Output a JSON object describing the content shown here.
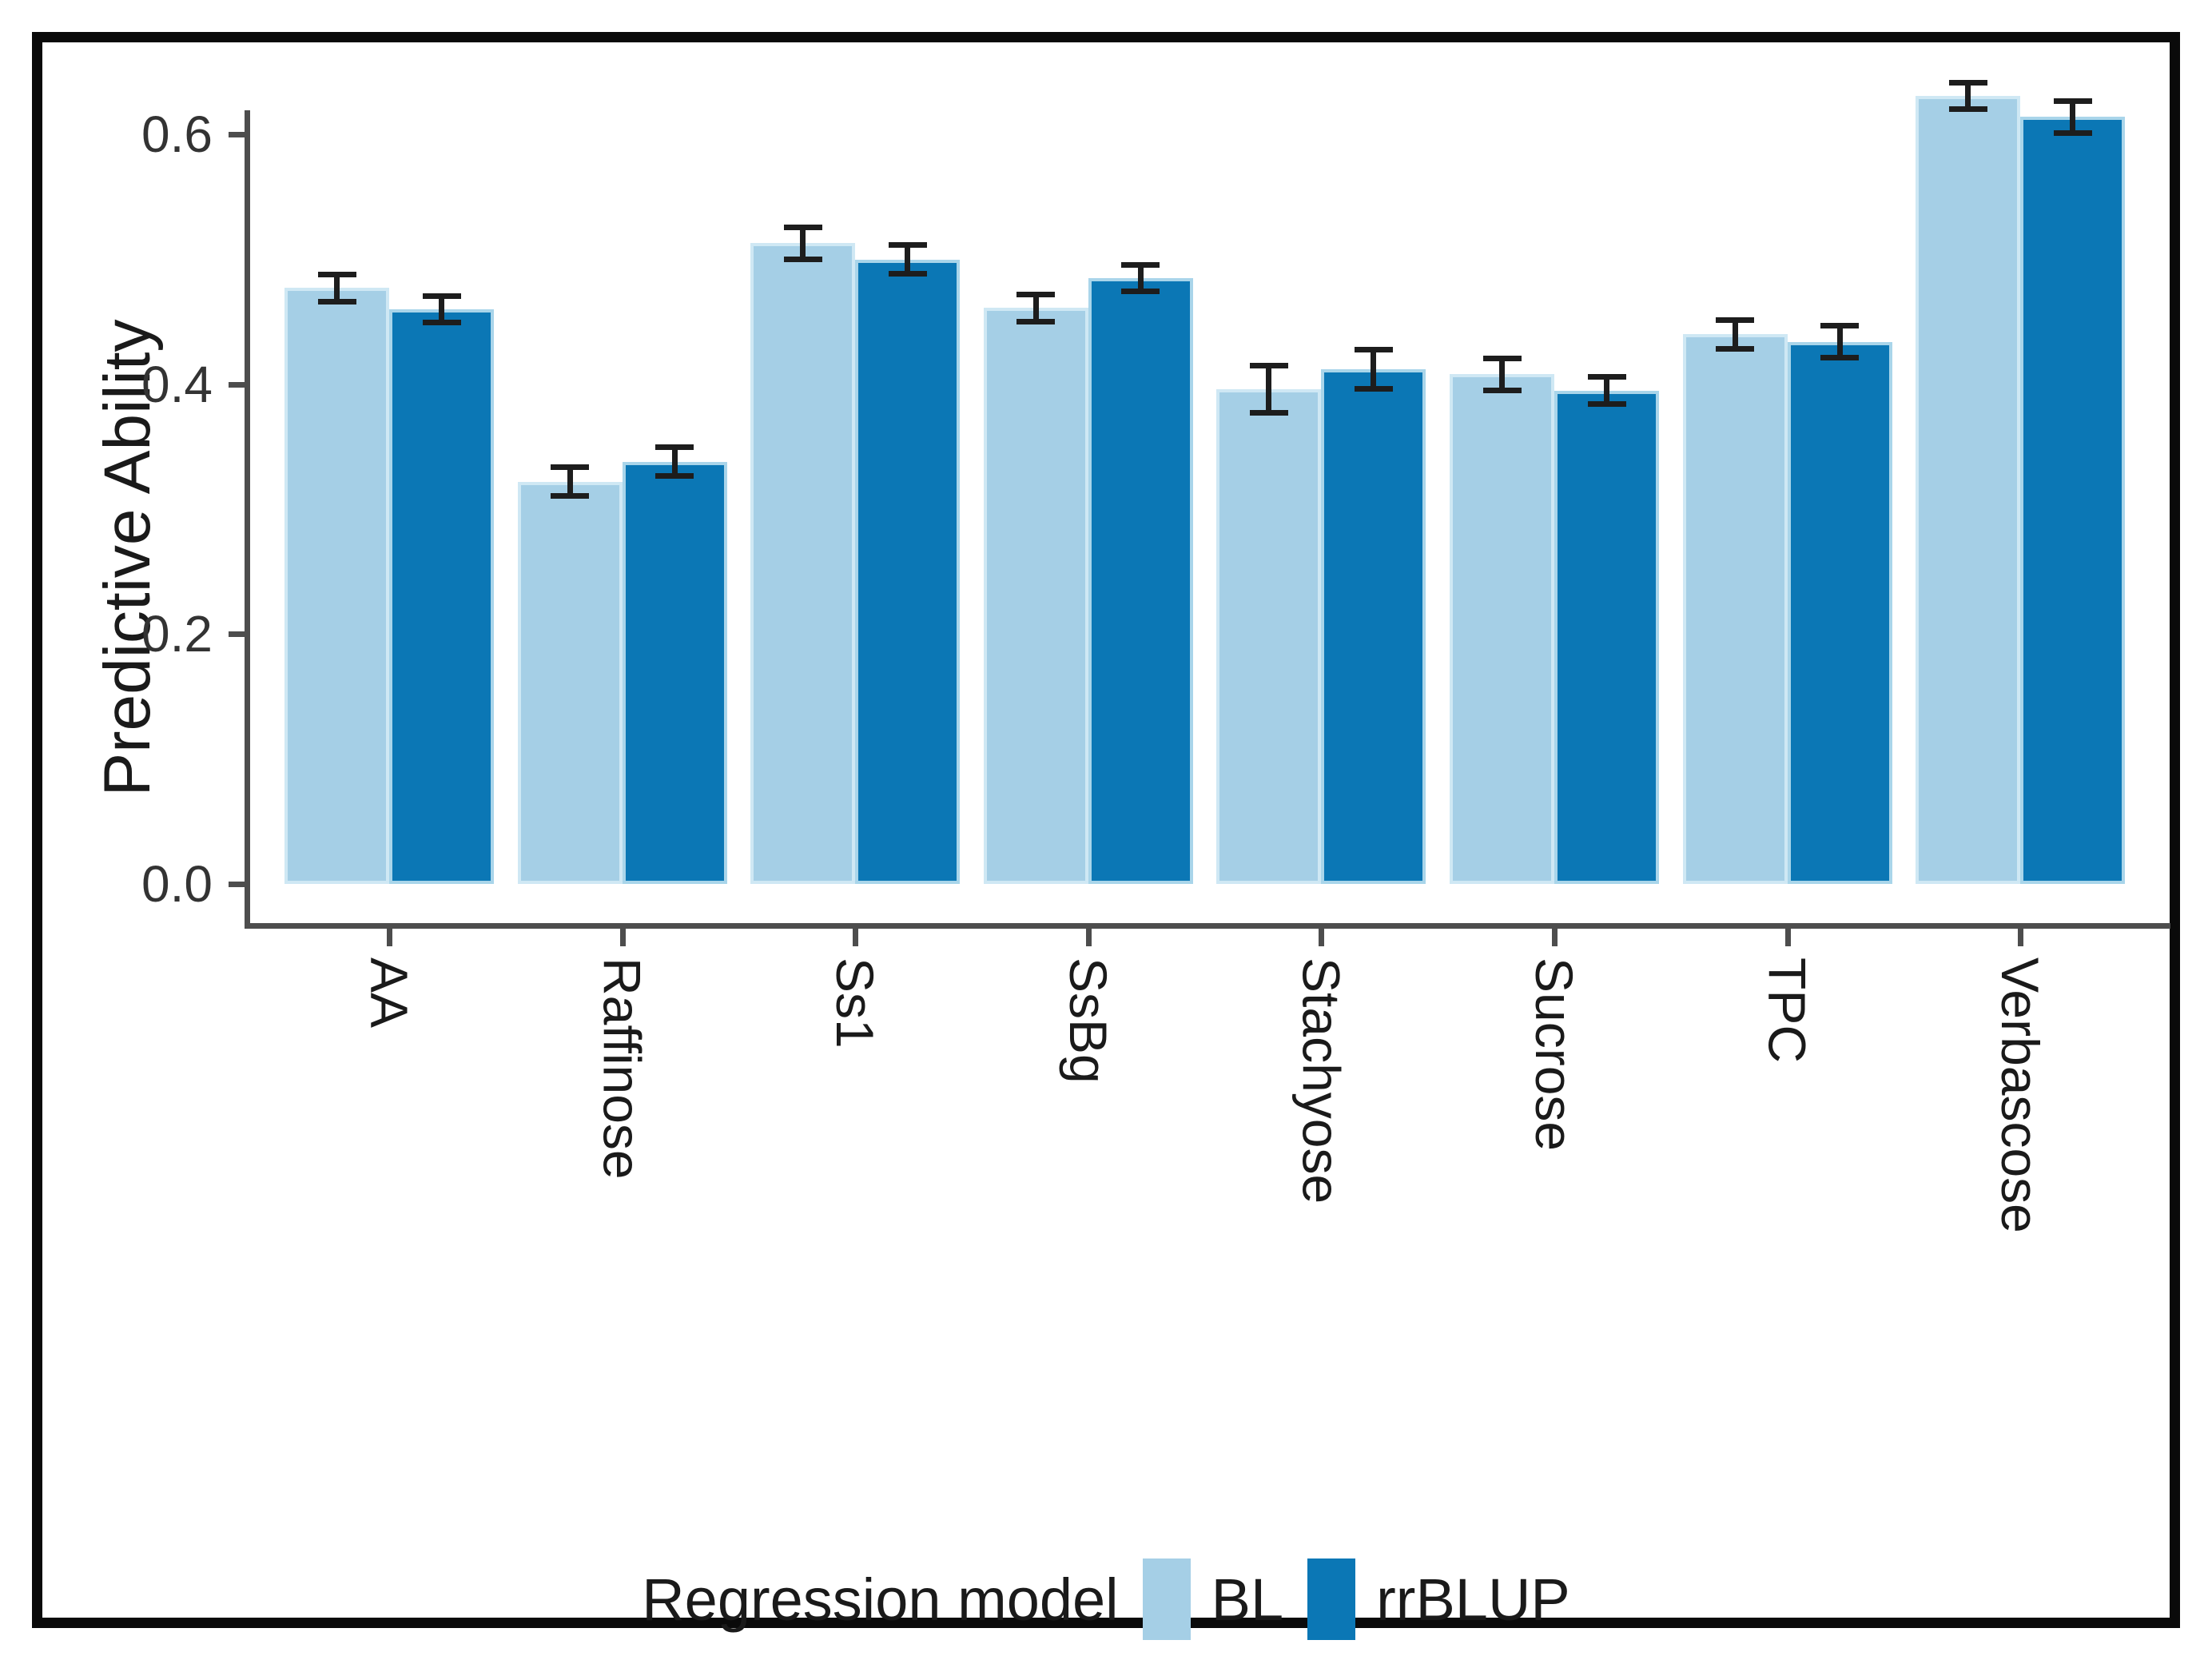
{
  "chart_data": {
    "type": "bar",
    "title": "",
    "ylabel": "Predictive Ability",
    "xlabel": "",
    "categories": [
      "AA",
      "Raffinose",
      "Ss1",
      "SsBg",
      "Stachyose",
      "Sucrose",
      "TPC",
      "Verbascose"
    ],
    "series": [
      {
        "name": "BL",
        "color": "#A5CFE6",
        "edge_color": "#cfe8f4",
        "values": [
          0.477,
          0.322,
          0.513,
          0.461,
          0.396,
          0.408,
          0.44,
          0.631
        ],
        "errors": [
          0.011,
          0.012,
          0.013,
          0.011,
          0.019,
          0.013,
          0.012,
          0.011
        ]
      },
      {
        "name": "rrBLUP",
        "color": "#0B77B5",
        "edge_color": "#a9d5ea",
        "values": [
          0.46,
          0.338,
          0.5,
          0.485,
          0.412,
          0.395,
          0.434,
          0.614
        ],
        "errors": [
          0.011,
          0.012,
          0.012,
          0.011,
          0.016,
          0.011,
          0.013,
          0.013
        ]
      }
    ],
    "y_ticks": [
      "0.0",
      "0.2",
      "0.4",
      "0.6"
    ],
    "y_tick_values": [
      0.0,
      0.2,
      0.4,
      0.6
    ],
    "ylim": [
      0,
      0.66
    ],
    "grid": false,
    "legend": {
      "title": "Regression model",
      "position": "bottom"
    },
    "colors": {
      "axis": "#4d4d4d",
      "error_bar": "#1d1d1d",
      "tick_label": "#333333",
      "text": "#1a1a1a",
      "frame_border": "#0a0a0a",
      "background": "#ffffff"
    }
  }
}
